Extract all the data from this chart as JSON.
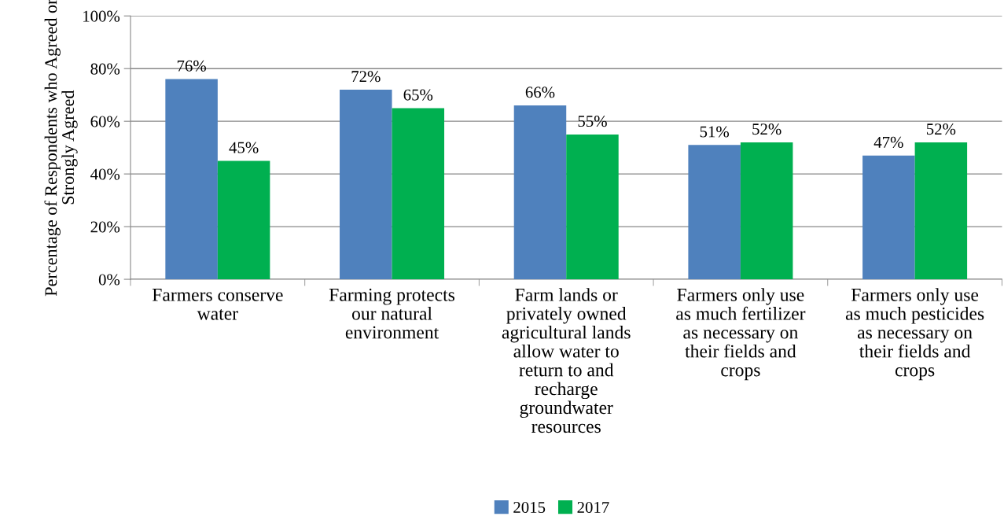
{
  "chart_data": {
    "type": "bar",
    "ylabel": "Percentage of Respondents who Agreed or\nStrongly Agreed",
    "categories": [
      "Farmers conserve\nwater",
      "Farming protects\nour natural\nenvironment",
      "Farm lands or\nprivately owned\nagricultural lands\nallow water to\nreturn to and\nrecharge\ngroundwater\nresources",
      "Farmers only use\nas much fertilizer\nas necessary on\ntheir fields and\ncrops",
      "Farmers only use\nas much pesticides\nas necessary on\ntheir fields and\ncrops"
    ],
    "series": [
      {
        "name": "2015",
        "color": "#4f81bd",
        "values": [
          76,
          72,
          66,
          51,
          47
        ],
        "value_labels": [
          "76%",
          "72%",
          "66%",
          "51%",
          "47%"
        ]
      },
      {
        "name": "2017",
        "color": "#00b050",
        "values": [
          45,
          65,
          55,
          52,
          52
        ],
        "value_labels": [
          "45%",
          "65%",
          "55%",
          "52%",
          "52%"
        ]
      }
    ],
    "ylim": [
      0,
      100
    ],
    "yticks": [
      {
        "value": 0,
        "label": "0%"
      },
      {
        "value": 20,
        "label": "20%"
      },
      {
        "value": 40,
        "label": "40%"
      },
      {
        "value": 60,
        "label": "60%"
      },
      {
        "value": 80,
        "label": "80%"
      },
      {
        "value": 100,
        "label": "100%"
      }
    ],
    "grid": "y",
    "legend": "bottom"
  }
}
